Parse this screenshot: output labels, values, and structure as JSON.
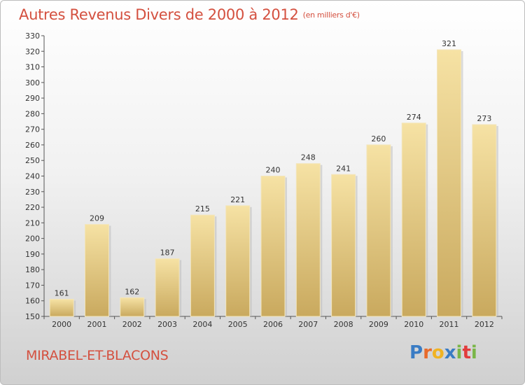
{
  "title": "Autres Revenus Divers de 2000 à 2012",
  "unit_note": "(en milliers d'€)",
  "commune": "MIRABEL-ET-BLACONS",
  "logo": {
    "text": "Proxiti",
    "colors": [
      "#3a7cc4",
      "#e86a2b",
      "#f0b323",
      "#3a7cc4",
      "#7ab648",
      "#e23c3c",
      "#7ab648"
    ]
  },
  "colors": {
    "title": "#d4503f",
    "bar_light": "#f6e2a4",
    "bar_dark": "#c9a95e"
  },
  "chart_data": {
    "type": "bar",
    "categories": [
      "2000",
      "2001",
      "2002",
      "2003",
      "2004",
      "2005",
      "2006",
      "2007",
      "2008",
      "2009",
      "2010",
      "2011",
      "2012"
    ],
    "values": [
      161,
      209,
      162,
      187,
      215,
      221,
      240,
      248,
      241,
      260,
      274,
      321,
      273
    ],
    "ylim": [
      150,
      330
    ],
    "yticks": [
      150,
      160,
      170,
      180,
      190,
      200,
      210,
      220,
      230,
      240,
      250,
      260,
      270,
      280,
      290,
      300,
      310,
      320,
      330
    ],
    "grid": false,
    "data_labels": true
  }
}
